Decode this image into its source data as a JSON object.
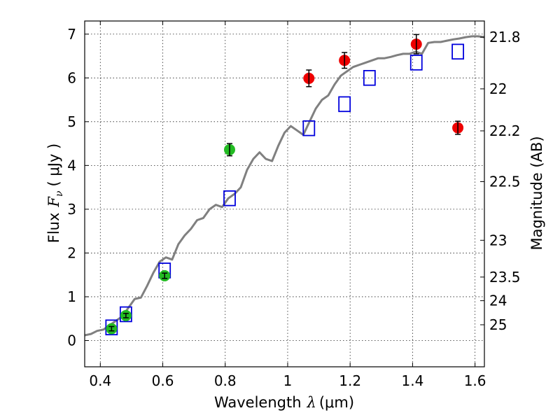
{
  "chart_data": {
    "type": "scatter",
    "xlabel_text": "Wavelength",
    "xlabel_math": "λ",
    "xlabel_unit": "(μm)",
    "ylabel_text": "Flux",
    "ylabel_math": "F",
    "ylabel_math_sub": "ν",
    "ylabel_unit": "( μJy )",
    "y2label": "Magnitude (AB)",
    "xlim": [
      0.35,
      1.63
    ],
    "ylim": [
      -0.6,
      7.3
    ],
    "xticks": [
      0.4,
      0.6,
      0.8,
      1.0,
      1.2,
      1.4,
      1.6
    ],
    "xtick_labels": [
      "0.4",
      "0.6",
      "0.8",
      "1",
      "1.2",
      "1.4",
      "1.6"
    ],
    "yticks": [
      0,
      1,
      2,
      3,
      4,
      5,
      6,
      7
    ],
    "ytick_labels": [
      "0",
      "1",
      "2",
      "3",
      "4",
      "5",
      "6",
      "7"
    ],
    "y2ticks": [
      {
        "label": "21.8",
        "flux": 6.93
      },
      {
        "label": "22",
        "flux": 5.75
      },
      {
        "label": "22.2",
        "flux": 4.79
      },
      {
        "label": "22.5",
        "flux": 3.63
      },
      {
        "label": "23",
        "flux": 2.29
      },
      {
        "label": "23.5",
        "flux": 1.45
      },
      {
        "label": "24",
        "flux": 0.91
      },
      {
        "label": "25",
        "flux": 0.36
      }
    ],
    "grid": true,
    "colors": {
      "model": "#808080",
      "green": "#22bb22",
      "red": "#ee0000",
      "blue": "#0000dd",
      "errorbar": "#000000"
    },
    "series": [
      {
        "type": "line",
        "points": [
          [
            0.35,
            0.12
          ],
          [
            0.37,
            0.15
          ],
          [
            0.39,
            0.22
          ],
          [
            0.41,
            0.25
          ],
          [
            0.43,
            0.35
          ],
          [
            0.45,
            0.45
          ],
          [
            0.47,
            0.55
          ],
          [
            0.49,
            0.75
          ],
          [
            0.51,
            0.95
          ],
          [
            0.53,
            0.98
          ],
          [
            0.55,
            1.25
          ],
          [
            0.57,
            1.55
          ],
          [
            0.59,
            1.8
          ],
          [
            0.61,
            1.9
          ],
          [
            0.63,
            1.85
          ],
          [
            0.65,
            2.2
          ],
          [
            0.67,
            2.4
          ],
          [
            0.69,
            2.55
          ],
          [
            0.71,
            2.75
          ],
          [
            0.73,
            2.8
          ],
          [
            0.75,
            3.0
          ],
          [
            0.77,
            3.1
          ],
          [
            0.79,
            3.05
          ],
          [
            0.81,
            3.25
          ],
          [
            0.83,
            3.35
          ],
          [
            0.85,
            3.5
          ],
          [
            0.87,
            3.9
          ],
          [
            0.89,
            4.15
          ],
          [
            0.91,
            4.3
          ],
          [
            0.93,
            4.15
          ],
          [
            0.95,
            4.1
          ],
          [
            0.97,
            4.45
          ],
          [
            0.99,
            4.75
          ],
          [
            1.01,
            4.9
          ],
          [
            1.03,
            4.8
          ],
          [
            1.05,
            4.7
          ],
          [
            1.07,
            5.0
          ],
          [
            1.09,
            5.3
          ],
          [
            1.11,
            5.5
          ],
          [
            1.13,
            5.6
          ],
          [
            1.15,
            5.85
          ],
          [
            1.17,
            6.05
          ],
          [
            1.19,
            6.15
          ],
          [
            1.21,
            6.25
          ],
          [
            1.23,
            6.3
          ],
          [
            1.25,
            6.35
          ],
          [
            1.27,
            6.4
          ],
          [
            1.29,
            6.45
          ],
          [
            1.31,
            6.45
          ],
          [
            1.33,
            6.48
          ],
          [
            1.35,
            6.52
          ],
          [
            1.37,
            6.55
          ],
          [
            1.39,
            6.55
          ],
          [
            1.41,
            6.6
          ],
          [
            1.43,
            6.55
          ],
          [
            1.45,
            6.8
          ],
          [
            1.47,
            6.82
          ],
          [
            1.49,
            6.82
          ],
          [
            1.51,
            6.85
          ],
          [
            1.53,
            6.88
          ],
          [
            1.55,
            6.9
          ],
          [
            1.57,
            6.93
          ],
          [
            1.59,
            6.95
          ],
          [
            1.61,
            6.95
          ],
          [
            1.63,
            6.93
          ]
        ]
      },
      {
        "type": "squares",
        "points": [
          [
            0.436,
            0.3
          ],
          [
            0.482,
            0.6
          ],
          [
            0.606,
            1.6
          ],
          [
            0.814,
            3.25
          ],
          [
            1.068,
            4.85
          ],
          [
            1.182,
            5.4
          ],
          [
            1.262,
            6.0
          ],
          [
            1.412,
            6.35
          ],
          [
            1.545,
            6.6
          ]
        ]
      },
      {
        "type": "green_dots",
        "points": [
          {
            "x": 0.436,
            "y": 0.27,
            "err": 0.05
          },
          {
            "x": 0.482,
            "y": 0.57,
            "err": 0.05
          },
          {
            "x": 0.606,
            "y": 1.48,
            "err": 0.06
          },
          {
            "x": 0.814,
            "y": 4.36,
            "err": 0.14
          }
        ]
      },
      {
        "type": "red_dots",
        "points": [
          {
            "x": 1.068,
            "y": 5.99,
            "err": 0.19
          },
          {
            "x": 1.182,
            "y": 6.4,
            "err": 0.18
          },
          {
            "x": 1.412,
            "y": 6.77,
            "err": 0.22
          },
          {
            "x": 1.545,
            "y": 4.86,
            "err": 0.15
          }
        ]
      }
    ]
  }
}
